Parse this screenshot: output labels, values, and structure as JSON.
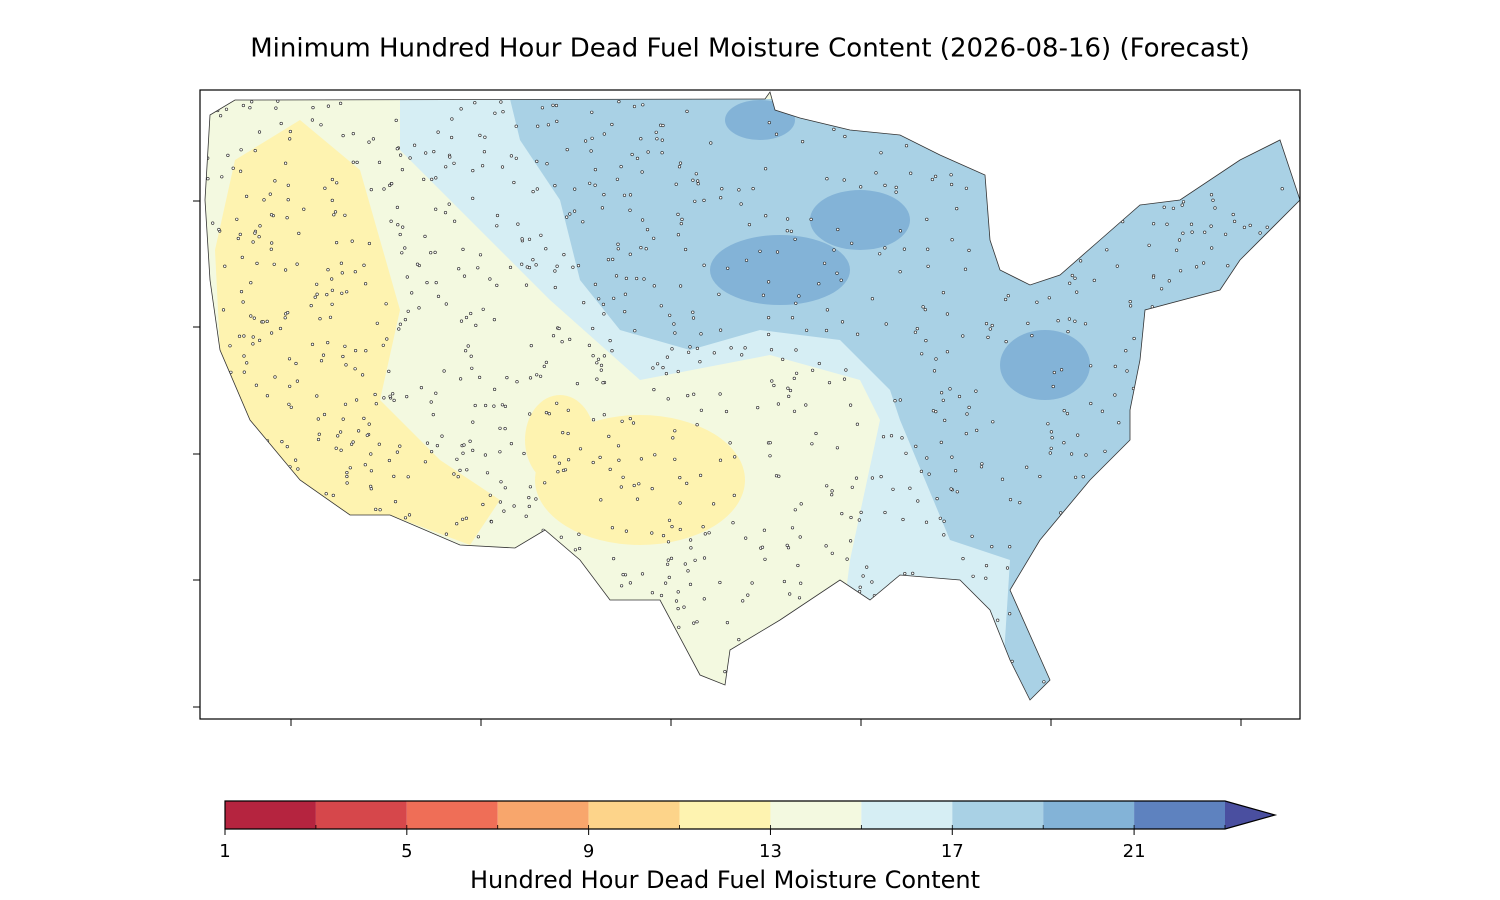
{
  "title": "Minimum Hundred Hour Dead Fuel Moisture Content (2026-08-16) (Forecast)",
  "colorbar": {
    "label": "Hundred Hour Dead Fuel Moisture Content",
    "levels": [
      1,
      3,
      5,
      7,
      9,
      11,
      13,
      15,
      17,
      19,
      21,
      23
    ],
    "colors": [
      "#b5243f",
      "#d6474b",
      "#ef6e57",
      "#f8a66c",
      "#fdd48a",
      "#fef3b0",
      "#f3f9e0",
      "#d6eef4",
      "#a9d1e5",
      "#83b3d7",
      "#5e82bf"
    ],
    "extend_color": "#4a4fa0",
    "ticks": [
      1,
      5,
      9,
      13,
      17,
      21
    ]
  }
}
